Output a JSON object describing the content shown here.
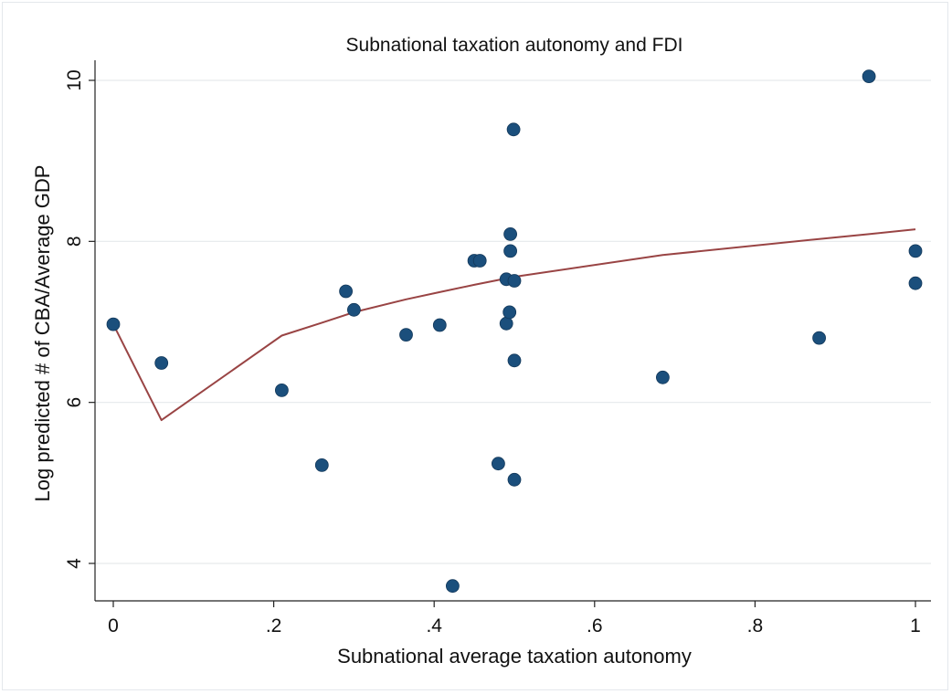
{
  "chart_data": {
    "type": "scatter",
    "title": "Subnational taxation autonomy and FDI",
    "xlabel": "Subnational average taxation autonomy",
    "ylabel": "Log predicted # of CBA/Average GDP",
    "xlim": [
      -0.03,
      1.02
    ],
    "ylim": [
      3.6,
      10.2
    ],
    "x_ticks": [
      0,
      0.2,
      0.4,
      0.6,
      0.8,
      1
    ],
    "x_tick_labels": [
      "0",
      ".2",
      ".4",
      ".6",
      ".8",
      "1"
    ],
    "y_ticks": [
      4,
      6,
      8,
      10
    ],
    "y_tick_labels": [
      "4",
      "6",
      "8",
      "10"
    ],
    "grid": "horizontal",
    "colors": {
      "points": "#1b4f7c",
      "fit_line": "#994444",
      "grid": "#e6e9ec",
      "axis": "#222222"
    },
    "series": [
      {
        "type": "scatter",
        "points": [
          {
            "x": 0.0,
            "y": 6.97
          },
          {
            "x": 0.06,
            "y": 6.49
          },
          {
            "x": 0.21,
            "y": 6.15
          },
          {
            "x": 0.26,
            "y": 5.22
          },
          {
            "x": 0.29,
            "y": 7.38
          },
          {
            "x": 0.3,
            "y": 7.15
          },
          {
            "x": 0.365,
            "y": 6.84
          },
          {
            "x": 0.407,
            "y": 6.96
          },
          {
            "x": 0.423,
            "y": 3.72
          },
          {
            "x": 0.45,
            "y": 7.76
          },
          {
            "x": 0.457,
            "y": 7.76
          },
          {
            "x": 0.48,
            "y": 5.24
          },
          {
            "x": 0.49,
            "y": 7.53
          },
          {
            "x": 0.49,
            "y": 6.98
          },
          {
            "x": 0.494,
            "y": 7.12
          },
          {
            "x": 0.495,
            "y": 8.09
          },
          {
            "x": 0.495,
            "y": 7.88
          },
          {
            "x": 0.499,
            "y": 9.39
          },
          {
            "x": 0.5,
            "y": 7.51
          },
          {
            "x": 0.5,
            "y": 6.52
          },
          {
            "x": 0.5,
            "y": 5.04
          },
          {
            "x": 0.685,
            "y": 6.31
          },
          {
            "x": 0.88,
            "y": 6.8
          },
          {
            "x": 0.942,
            "y": 10.05
          },
          {
            "x": 1.0,
            "y": 7.88
          },
          {
            "x": 1.0,
            "y": 7.48
          }
        ]
      },
      {
        "type": "line",
        "points": [
          {
            "x": 0.0,
            "y": 6.97
          },
          {
            "x": 0.06,
            "y": 5.78
          },
          {
            "x": 0.21,
            "y": 6.83
          },
          {
            "x": 0.26,
            "y": 6.99
          },
          {
            "x": 0.3,
            "y": 7.12
          },
          {
            "x": 0.365,
            "y": 7.28
          },
          {
            "x": 0.407,
            "y": 7.37
          },
          {
            "x": 0.45,
            "y": 7.46
          },
          {
            "x": 0.5,
            "y": 7.56
          },
          {
            "x": 0.685,
            "y": 7.83
          },
          {
            "x": 0.88,
            "y": 8.03
          },
          {
            "x": 0.942,
            "y": 8.09
          },
          {
            "x": 1.0,
            "y": 8.15
          }
        ]
      }
    ]
  }
}
